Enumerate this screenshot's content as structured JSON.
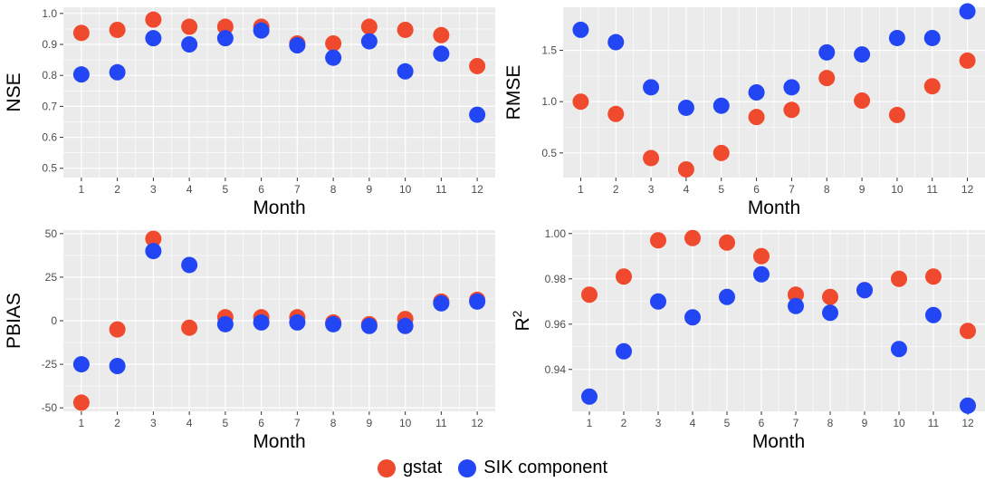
{
  "legend": {
    "items": [
      {
        "label": "gstat",
        "color": "#F04A2E"
      },
      {
        "label": "SIK component",
        "color": "#2346F5"
      }
    ]
  },
  "colors": {
    "panel_bg": "#EBEBEB",
    "grid": "#FFFFFF",
    "axis_text": "#4D4D4D"
  },
  "chart_data": [
    {
      "type": "scatter",
      "xlabel": "Month",
      "ylabel": "NSE",
      "x": [
        1,
        2,
        3,
        4,
        5,
        6,
        7,
        8,
        9,
        10,
        11,
        12
      ],
      "xticks": [
        1,
        2,
        3,
        4,
        5,
        6,
        7,
        8,
        9,
        10,
        11,
        12
      ],
      "ylim": [
        0.47,
        1.02
      ],
      "yticks": [
        0.5,
        0.6,
        0.7,
        0.8,
        0.9,
        1.0
      ],
      "ytick_labels": [
        "0.5",
        "0.6",
        "0.7",
        "0.8",
        "0.9",
        "1.0"
      ],
      "grid": true,
      "series": [
        {
          "name": "gstat",
          "values": [
            0.937,
            0.947,
            0.98,
            0.957,
            0.957,
            0.957,
            0.903,
            0.903,
            0.957,
            0.947,
            0.93,
            0.83
          ]
        },
        {
          "name": "SIK component",
          "values": [
            0.803,
            0.81,
            0.92,
            0.9,
            0.92,
            0.945,
            0.897,
            0.857,
            0.91,
            0.813,
            0.87,
            0.673
          ]
        }
      ]
    },
    {
      "type": "scatter",
      "xlabel": "Month",
      "ylabel": "RMSE",
      "x": [
        1,
        2,
        3,
        4,
        5,
        6,
        7,
        8,
        9,
        10,
        11,
        12
      ],
      "xticks": [
        1,
        2,
        3,
        4,
        5,
        6,
        7,
        8,
        9,
        10,
        11,
        12
      ],
      "ylim": [
        0.26,
        1.92
      ],
      "yticks": [
        0.5,
        1.0,
        1.5
      ],
      "ytick_labels": [
        "0.5",
        "1.0",
        "1.5"
      ],
      "grid": true,
      "series": [
        {
          "name": "gstat",
          "values": [
            1.0,
            0.88,
            0.45,
            0.34,
            0.5,
            0.85,
            0.92,
            1.23,
            1.01,
            0.87,
            1.15,
            1.4
          ]
        },
        {
          "name": "SIK component",
          "values": [
            1.7,
            1.58,
            1.14,
            0.94,
            0.96,
            1.09,
            1.14,
            1.48,
            1.46,
            1.62,
            1.62,
            1.88
          ]
        }
      ]
    },
    {
      "type": "scatter",
      "xlabel": "Month",
      "ylabel": "PBIAS",
      "x": [
        1,
        2,
        3,
        4,
        5,
        6,
        7,
        8,
        9,
        10,
        11,
        12
      ],
      "xticks": [
        1,
        2,
        3,
        4,
        5,
        6,
        7,
        8,
        9,
        10,
        11,
        12
      ],
      "ylim": [
        -52,
        52
      ],
      "yticks": [
        -50,
        -25,
        0,
        25,
        50
      ],
      "ytick_labels": [
        "-50",
        "-25",
        "0",
        "25",
        "50"
      ],
      "grid": true,
      "series": [
        {
          "name": "gstat",
          "values": [
            -47,
            -5,
            47,
            -4,
            2,
            2,
            2,
            -1,
            -2,
            1,
            11,
            12
          ]
        },
        {
          "name": "SIK component",
          "values": [
            -25,
            -26,
            40,
            32,
            -2,
            -1,
            -1,
            -2,
            -3,
            -3,
            10,
            11
          ]
        }
      ]
    },
    {
      "type": "scatter",
      "xlabel": "Month",
      "ylabel": "R",
      "ylabel_sup": "2",
      "x": [
        1,
        2,
        3,
        4,
        5,
        6,
        7,
        8,
        9,
        10,
        11,
        12
      ],
      "xticks": [
        1,
        2,
        3,
        4,
        5,
        6,
        7,
        8,
        9,
        10,
        11,
        12
      ],
      "ylim": [
        0.9215,
        1.0015
      ],
      "yticks": [
        0.94,
        0.96,
        0.98,
        1.0
      ],
      "ytick_labels": [
        "0.94",
        "0.96",
        "0.98",
        "1.00"
      ],
      "grid": true,
      "series": [
        {
          "name": "gstat",
          "values": [
            0.973,
            0.981,
            0.997,
            0.998,
            0.996,
            0.99,
            0.973,
            0.972,
            0.975,
            0.98,
            0.981,
            0.957
          ]
        },
        {
          "name": "SIK component",
          "values": [
            0.928,
            0.948,
            0.97,
            0.963,
            0.972,
            0.982,
            0.968,
            0.965,
            0.975,
            0.949,
            0.964,
            0.924
          ]
        }
      ]
    }
  ]
}
